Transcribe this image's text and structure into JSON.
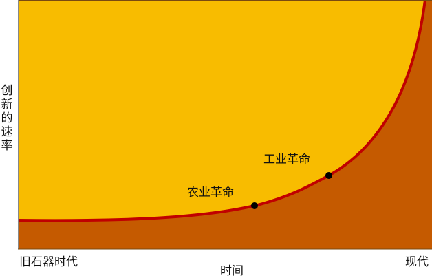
{
  "y_axis_label": "创新的速率",
  "x_axis_label": "时间",
  "x_start_label": "旧石器时代",
  "x_end_label": "现代",
  "annotations": [
    {
      "label": "农业革命"
    },
    {
      "label": "工业革命"
    }
  ],
  "colors": {
    "above_curve": "#F8BC00",
    "below_curve": "#C55A00",
    "curve": "#C00000",
    "points": "#000000"
  }
}
